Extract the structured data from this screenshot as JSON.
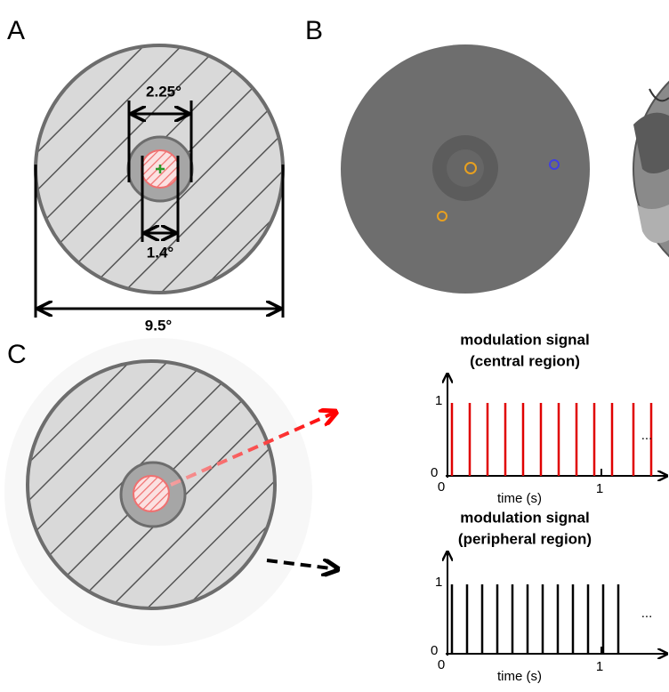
{
  "panels": [
    {
      "label": "A",
      "dimensions": [
        "2.25°",
        "1.4°",
        "9.5°"
      ]
    },
    {
      "label": "B"
    },
    {
      "label": "C",
      "plots": [
        {
          "title": "modulation signal",
          "subtitle": "(central region)",
          "y_high": "1",
          "y_low": "0",
          "x_start": "0",
          "x_tick": "1",
          "x_label": "time (s)",
          "ellipsis": "..."
        },
        {
          "title": "modulation signal",
          "subtitle": "(peripheral region)",
          "y_high": "1",
          "y_low": "0",
          "x_start": "0",
          "x_tick": "1",
          "x_label": "time (s)",
          "ellipsis": "..."
        }
      ]
    }
  ]
}
